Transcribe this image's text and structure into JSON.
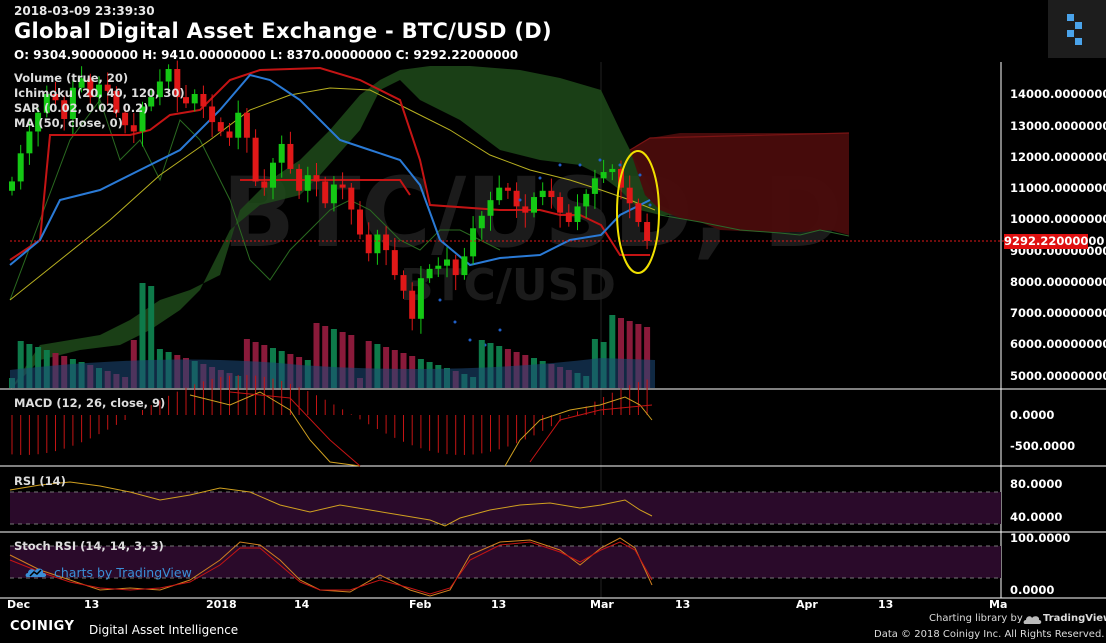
{
  "header": {
    "timestamp": "2018-03-09 23:39:30",
    "title": "Global Digital Asset Exchange - BTC/USD (D)",
    "ohlc": "O: 9304.90000000 H: 9410.00000000 L: 8370.00000000 C: 9292.22000000"
  },
  "watermark": {
    "big": "BTC/USD, D",
    "small": "BTC/USD"
  },
  "indicators": {
    "volume": "Volume (true, 20)",
    "ichimoku": "Ichimoku (20, 40, 120, 30)",
    "sar": "SAR (0.02, 0.02, 0.2)",
    "ma": "MA (50, close, 0)",
    "macd": "MACD (12, 26, close, 9)",
    "rsi": "RSI (14)",
    "stoch": "Stoch RSI (14, 14, 3, 3)"
  },
  "price_axis": [
    "14000.00000000",
    "13000.00000000",
    "12000.00000000",
    "11000.00000000",
    "10000.00000000",
    "9000.00000000",
    "8000.00000000",
    "7000.00000000",
    "6000.00000000",
    "5000.00000000"
  ],
  "last_price": "9292.22000000",
  "macd_axis": [
    "0.0000",
    "-500.0000"
  ],
  "rsi_axis": [
    "80.0000",
    "40.0000"
  ],
  "stoch_axis": [
    "100.0000",
    "0.0000"
  ],
  "time_axis": [
    "Dec",
    "13",
    "2018",
    "14",
    "Feb",
    "13",
    "Mar",
    "13",
    "Apr",
    "13",
    "Ma"
  ],
  "footer": {
    "tv_link": "charts by TradingView",
    "brand": "COINIGY",
    "tagline": "Digital Asset Intelligence",
    "charting": "Charting library by",
    "tv": "TradingView",
    "copyright": "Data © 2018 Coinigy Inc. All Rights Reserved."
  },
  "colors": {
    "up": "#14c814",
    "down": "#e01818",
    "accent": "#3a8fd6",
    "highlight": "#f0e000"
  },
  "chart_data": {
    "type": "candlestick",
    "symbol": "BTC/USD",
    "interval": "D",
    "ylim": [
      4500,
      14800
    ],
    "close": [
      11200,
      12100,
      12800,
      13400,
      14000,
      13800,
      13200,
      14200,
      14500,
      13900,
      14300,
      14100,
      13400,
      13000,
      12800,
      13600,
      13900,
      14400,
      14800,
      13900,
      13700,
      14000,
      13600,
      13100,
      12800,
      12600,
      13400,
      12600,
      11200,
      11000,
      11800,
      12400,
      11600,
      10900,
      11400,
      11200,
      10500,
      11100,
      11000,
      10300,
      9500,
      8900,
      9500,
      9000,
      8200,
      7700,
      6800,
      8100,
      8400,
      8500,
      8700,
      8200,
      8800,
      9700,
      10100,
      10600,
      11000,
      10900,
      10400,
      10200,
      10700,
      10900,
      10700,
      10200,
      9900,
      10400,
      10800,
      11300,
      11500,
      11600,
      11000,
      10500,
      9900,
      9292
    ]
  }
}
